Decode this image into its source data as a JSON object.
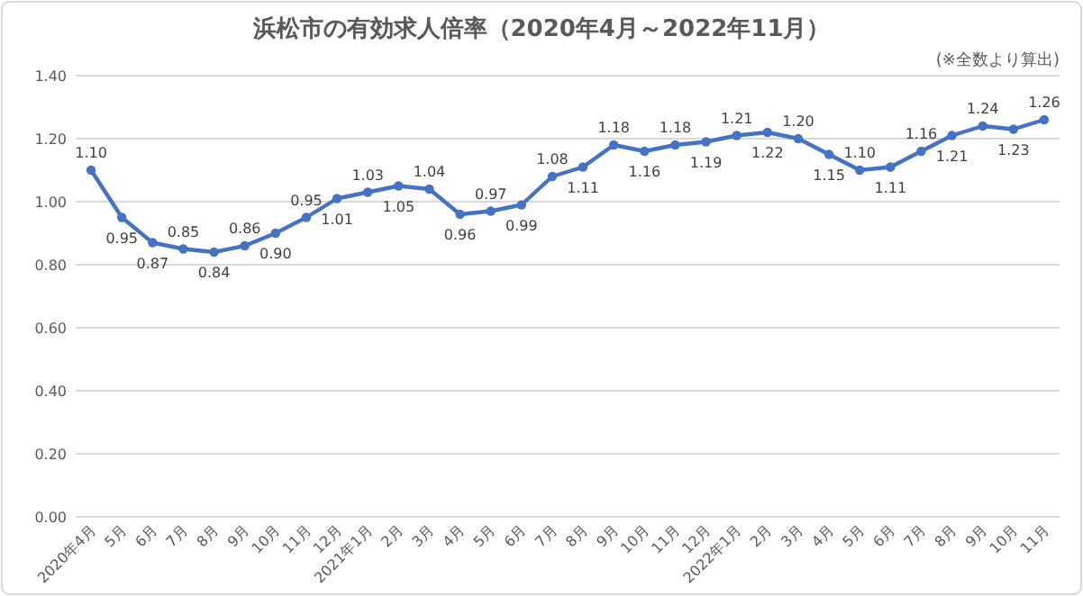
{
  "chart_data": {
    "type": "line",
    "title": "浜松市の有効求人倍率（2020年4月～2022年11月）",
    "annotations": [
      "(※全数より算出)"
    ],
    "categories": [
      "2020年4月",
      "5月",
      "6月",
      "7月",
      "8月",
      "9月",
      "10月",
      "11月",
      "12月",
      "2021年1月",
      "2月",
      "3月",
      "4月",
      "5月",
      "6月",
      "7月",
      "8月",
      "9月",
      "10月",
      "11月",
      "12月",
      "2022年1月",
      "2月",
      "3月",
      "4月",
      "5月",
      "6月",
      "7月",
      "8月",
      "9月",
      "10月",
      "11月"
    ],
    "series": [
      {
        "color": "#4472c4",
        "values": [
          1.1,
          0.95,
          0.87,
          0.85,
          0.84,
          0.86,
          0.9,
          0.95,
          1.01,
          1.03,
          1.05,
          1.04,
          0.96,
          0.97,
          0.99,
          1.08,
          1.11,
          1.18,
          1.16,
          1.18,
          1.19,
          1.21,
          1.22,
          1.2,
          1.15,
          1.1,
          1.11,
          1.16,
          1.21,
          1.24,
          1.23,
          1.26
        ],
        "value_labels": [
          "1.10",
          "0.95",
          "0.87",
          "0.85",
          "0.84",
          "0.86",
          "0.90",
          "0.95",
          "1.01",
          "1.03",
          "1.05",
          "1.04",
          "0.96",
          "0.97",
          "0.99",
          "1.08",
          "1.11",
          "1.18",
          "1.16",
          "1.18",
          "1.19",
          "1.21",
          "1.22",
          "1.20",
          "1.15",
          "1.10",
          "1.11",
          "1.16",
          "1.21",
          "1.24",
          "1.23",
          "1.26"
        ]
      }
    ],
    "ylim": [
      0,
      1.4
    ],
    "yticks": [
      {
        "value": 0,
        "label": "0.00"
      },
      {
        "value": 0.2,
        "label": "0.20"
      },
      {
        "value": 0.4,
        "label": "0.40"
      },
      {
        "value": 0.6,
        "label": "0.60"
      },
      {
        "value": 0.8,
        "label": "0.80"
      },
      {
        "value": 1.0,
        "label": "1.00"
      },
      {
        "value": 1.2,
        "label": "1.20"
      },
      {
        "value": 1.4,
        "label": "1.40"
      }
    ],
    "grid": "y",
    "marker": "circle",
    "line_style": "solid"
  }
}
